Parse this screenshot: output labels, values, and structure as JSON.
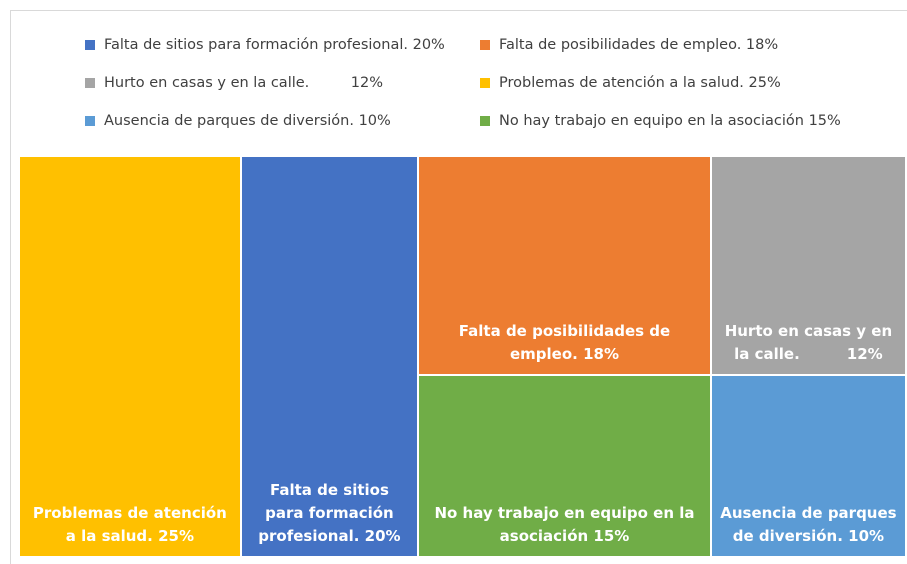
{
  "chart_data": {
    "type": "treemap",
    "items": [
      {
        "name": "Falta de sitios para formación profesional. 20%",
        "value": 20,
        "color": "#4472c4"
      },
      {
        "name": "Falta de posibilidades de empleo. 18%",
        "value": 18,
        "color": "#ed7d31"
      },
      {
        "name": "Hurto en casas y en la calle.         12%",
        "value": 12,
        "color": "#a5a5a5"
      },
      {
        "name": "Problemas de atención a la salud. 25%",
        "value": 25,
        "color": "#ffc000"
      },
      {
        "name": "Ausencia de parques de diversión. 10%",
        "value": 10,
        "color": "#5b9bd5"
      },
      {
        "name": "No hay trabajo en equipo en la asociación 15%",
        "value": 15,
        "color": "#70ad47"
      }
    ]
  }
}
